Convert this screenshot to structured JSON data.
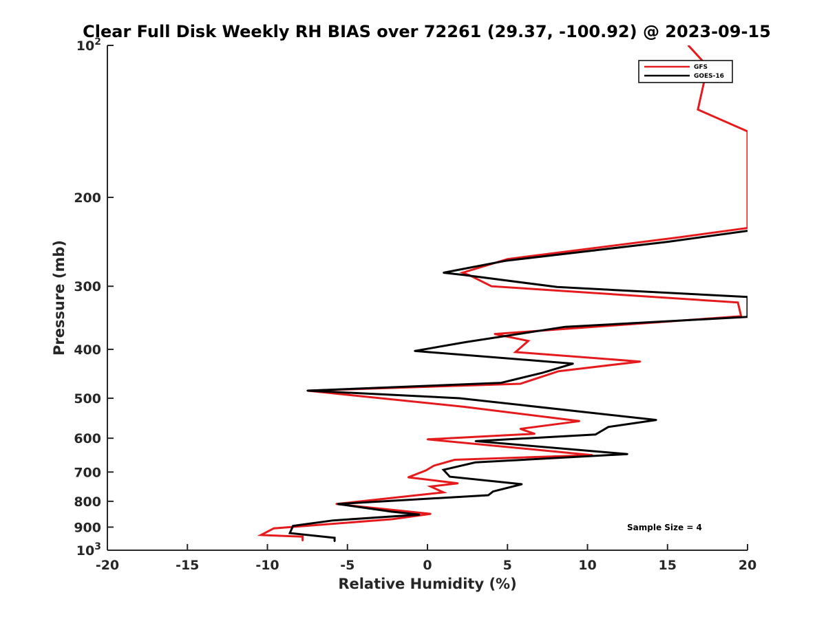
{
  "chart_data": {
    "type": "line",
    "title": "Clear Full Disk Weekly RH BIAS over 72261 (29.37, -100.92) @ 2023-09-15",
    "xlabel": "Relative Humidity (%)",
    "ylabel": "Pressure (mb)",
    "xlim": [
      -20,
      20
    ],
    "ylim": [
      100,
      1000
    ],
    "y_scale": "log",
    "y_reversed": true,
    "grid": false,
    "legend_position": "top-right",
    "x_ticks": [
      "-20",
      "-15",
      "-10",
      "-5",
      "0",
      "5",
      "10",
      "15",
      "20"
    ],
    "y_tick_labels": [
      {
        "value": 100,
        "base": "10",
        "exp": "2"
      },
      {
        "value": 200,
        "base": "200",
        "exp": ""
      },
      {
        "value": 300,
        "base": "300",
        "exp": ""
      },
      {
        "value": 400,
        "base": "400",
        "exp": ""
      },
      {
        "value": 500,
        "base": "500",
        "exp": ""
      },
      {
        "value": 600,
        "base": "600",
        "exp": ""
      },
      {
        "value": 700,
        "base": "700",
        "exp": ""
      },
      {
        "value": 800,
        "base": "800",
        "exp": ""
      },
      {
        "value": 900,
        "base": "900",
        "exp": ""
      },
      {
        "value": 1000,
        "base": "10",
        "exp": "3"
      }
    ],
    "annotation": "Sample Size = 4",
    "series": [
      {
        "name": "GFS",
        "color": "#e41a1c",
        "points": [
          [
            16.3,
            100
          ],
          [
            17.5,
            110
          ],
          [
            16.9,
            134
          ],
          [
            20.0,
            148
          ],
          [
            20.0,
            230
          ],
          [
            15.7,
            240
          ],
          [
            5.0,
            265
          ],
          [
            2.2,
            282
          ],
          [
            2.6,
            285
          ],
          [
            4.0,
            300
          ],
          [
            19.4,
            323
          ],
          [
            19.6,
            344
          ],
          [
            4.2,
            373
          ],
          [
            6.3,
            385
          ],
          [
            5.5,
            405
          ],
          [
            13.3,
            423
          ],
          [
            8.2,
            442
          ],
          [
            5.8,
            468
          ],
          [
            -7.5,
            483
          ],
          [
            2.3,
            520
          ],
          [
            9.5,
            555
          ],
          [
            5.8,
            575
          ],
          [
            6.7,
            588
          ],
          [
            0.0,
            603
          ],
          [
            10.3,
            648
          ],
          [
            1.7,
            662
          ],
          [
            0.4,
            680
          ],
          [
            -0.1,
            695
          ],
          [
            -1.2,
            717
          ],
          [
            1.9,
            737
          ],
          [
            0.2,
            748
          ],
          [
            1.0,
            768
          ],
          [
            -5.7,
            810
          ],
          [
            0.2,
            847
          ],
          [
            -2.2,
            868
          ],
          [
            -9.6,
            905
          ],
          [
            -10.4,
            933
          ],
          [
            -7.8,
            940
          ],
          [
            -7.8,
            957
          ]
        ]
      },
      {
        "name": "GOES-16",
        "color": "#000000",
        "points": [
          [
            20.0,
            233
          ],
          [
            15.0,
            245
          ],
          [
            4.9,
            267
          ],
          [
            1.0,
            282
          ],
          [
            2.3,
            285
          ],
          [
            8.1,
            301
          ],
          [
            20.0,
            315
          ],
          [
            20.0,
            345
          ],
          [
            8.6,
            361
          ],
          [
            2.4,
            387
          ],
          [
            -0.8,
            403
          ],
          [
            9.1,
            427
          ],
          [
            7.2,
            445
          ],
          [
            4.6,
            466
          ],
          [
            -7.5,
            483
          ],
          [
            2.0,
            500
          ],
          [
            14.3,
            552
          ],
          [
            11.3,
            570
          ],
          [
            10.5,
            590
          ],
          [
            3.0,
            608
          ],
          [
            12.5,
            645
          ],
          [
            3.0,
            670
          ],
          [
            1.0,
            693
          ],
          [
            1.4,
            715
          ],
          [
            5.9,
            740
          ],
          [
            4.1,
            765
          ],
          [
            3.8,
            778
          ],
          [
            -5.6,
            810
          ],
          [
            -2.3,
            838
          ],
          [
            -0.5,
            850
          ],
          [
            -5.9,
            873
          ],
          [
            -8.4,
            895
          ],
          [
            -8.6,
            925
          ],
          [
            -5.8,
            945
          ],
          [
            -5.8,
            960
          ]
        ]
      }
    ]
  }
}
